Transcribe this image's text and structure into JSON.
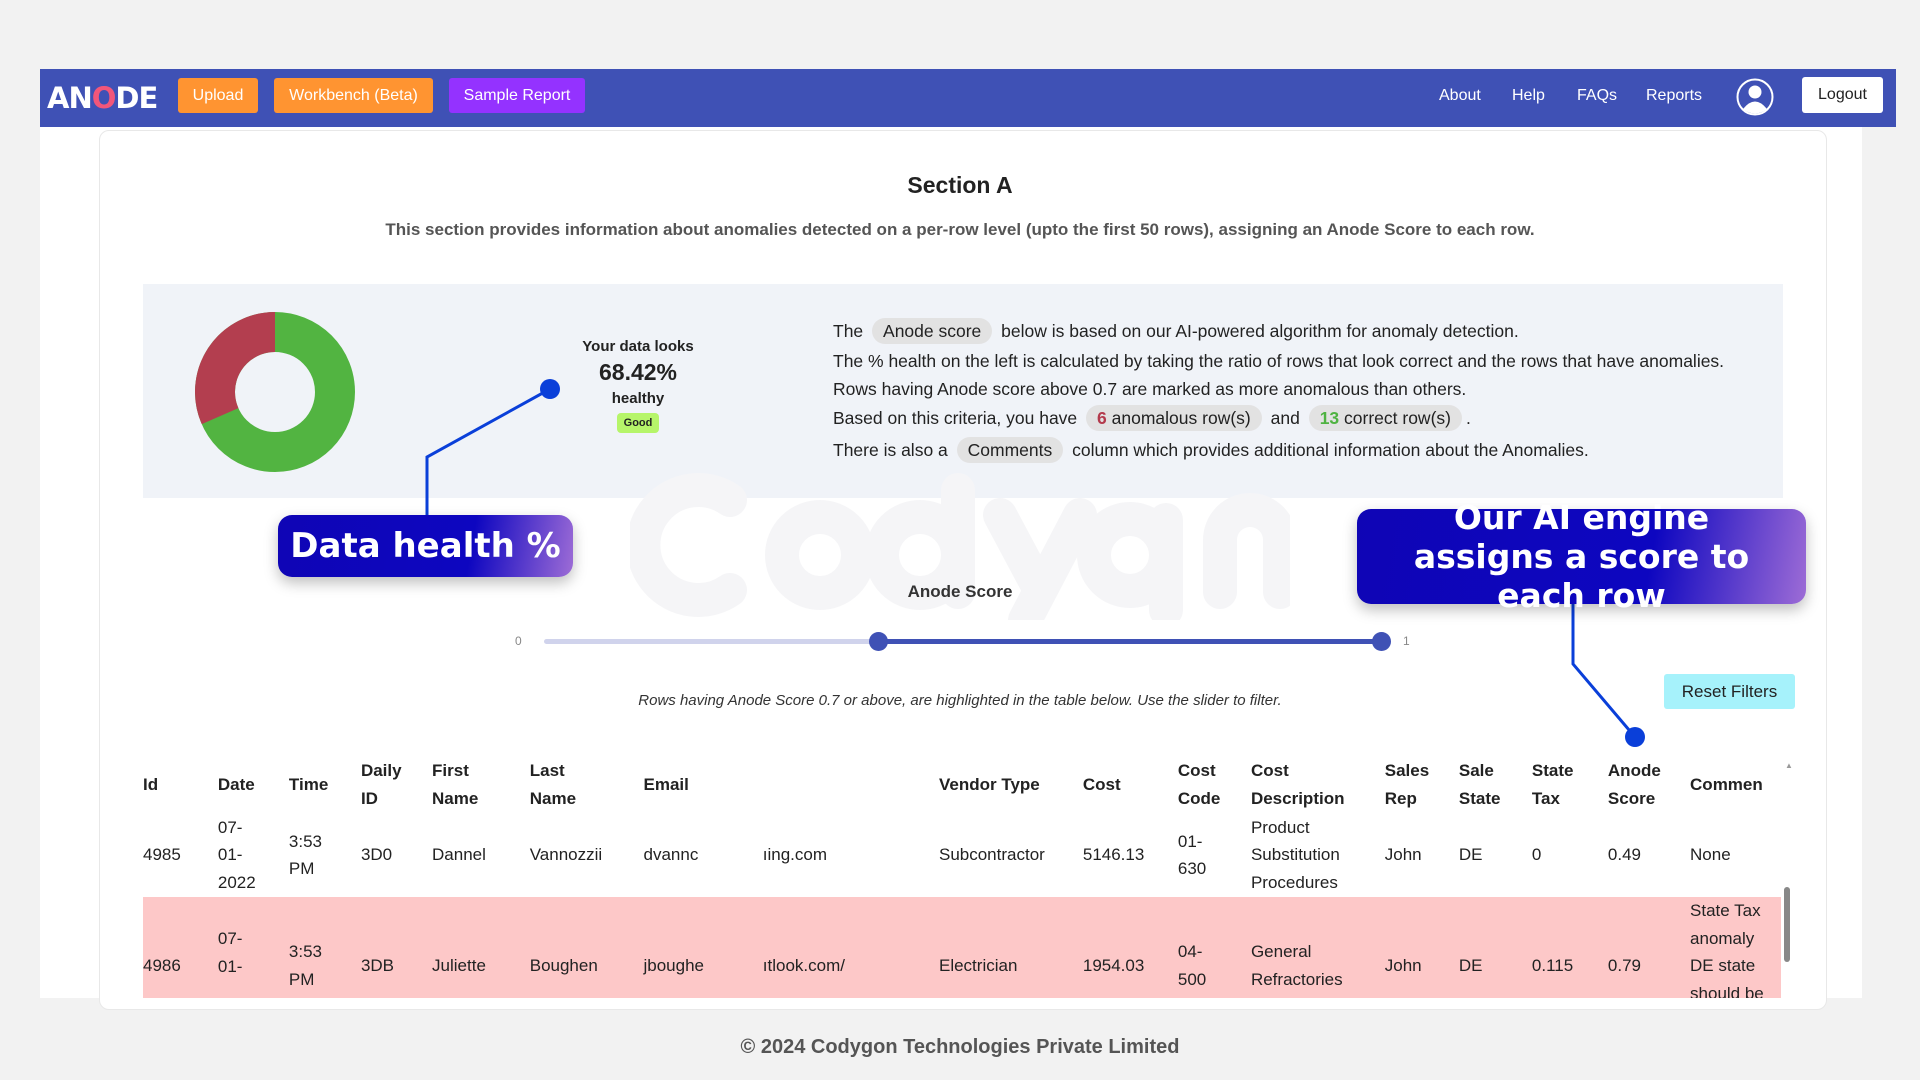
{
  "nav": {
    "logo": "ANODE",
    "logo_parts": [
      "AN",
      "O",
      "DE"
    ],
    "buttons": [
      {
        "label": "Upload",
        "color": "#ff9431"
      },
      {
        "label": "Workbench (Beta)",
        "color": "#ff9431"
      },
      {
        "label": "Sample Report",
        "color": "#9432ff"
      }
    ],
    "links": [
      "About",
      "Help",
      "FAQs",
      "Reports"
    ],
    "logout": "Logout"
  },
  "section": {
    "title": "Section A",
    "subtitle": "This section provides information about anomalies detected on a per-row level (upto the first 50 rows), assigning an Anode Score to each row."
  },
  "health": {
    "line1": "Your data looks",
    "percent": "68.42%",
    "line2": "healthy",
    "badge": "Good",
    "healthy_fraction": 0.6842,
    "colors": {
      "healthy": "#52b441",
      "anomalous": "#b33e4f"
    }
  },
  "info": {
    "l1_pre": "The",
    "l1_chip": "Anode score",
    "l1_post": "below is based on our AI-powered algorithm for anomaly detection.",
    "l2": "The % health on the left is calculated by taking the ratio of rows that look correct and the rows that have anomalies.",
    "l3": "Rows having Anode score above 0.7 are marked as more anomalous than others.",
    "l4_pre": "Based on this criteria, you have",
    "anom_count": "6",
    "anom_label": "anomalous row(s)",
    "l4_and": "and",
    "correct_count": "13",
    "correct_label": "correct row(s)",
    "l4_end": ".",
    "l5_pre": "There is also a",
    "l5_chip": "Comments",
    "l5_post": "column which provides additional information about the Anomalies."
  },
  "callouts": {
    "health": "Data health %",
    "ai": "Our AI engine assigns a score to each row"
  },
  "watermark": "Codygon",
  "slider": {
    "label": "Anode Score",
    "min_label": "0",
    "max_label": "1",
    "low": 0.4,
    "high": 1.0,
    "note": "Rows having Anode Score 0.7 or above, are highlighted in the table below. Use the slider to filter."
  },
  "reset_label": "Reset Filters",
  "table": {
    "headers": [
      [
        "Id"
      ],
      [
        "Date"
      ],
      [
        "Time"
      ],
      [
        "Daily",
        "ID"
      ],
      [
        "First",
        "Name"
      ],
      [
        "Last",
        "Name"
      ],
      [
        "Email"
      ],
      [
        ""
      ],
      [
        "Vendor Type"
      ],
      [
        "Cost"
      ],
      [
        "Cost",
        "Code"
      ],
      [
        "Cost",
        "Description"
      ],
      [
        "Sales",
        "Rep"
      ],
      [
        "Sale",
        "State"
      ],
      [
        "State",
        "Tax"
      ],
      [
        "Anode",
        "Score"
      ],
      [
        "Commen"
      ]
    ],
    "rows": [
      {
        "anomalous": false,
        "cells": [
          [
            "4985"
          ],
          [
            "07-",
            "01-",
            "2022"
          ],
          [
            "3:53",
            "PM"
          ],
          [
            "3D0"
          ],
          [
            "Dannel"
          ],
          [
            "Vannozzii"
          ],
          [
            "dvannc"
          ],
          [
            "ıing.com"
          ],
          [
            "Subcontractor"
          ],
          [
            "5146.13"
          ],
          [
            "01-",
            "630"
          ],
          [
            "Product",
            "Substitution",
            "Procedures"
          ],
          [
            "John"
          ],
          [
            "DE"
          ],
          [
            "0"
          ],
          [
            "0.49"
          ],
          [
            "None"
          ]
        ]
      },
      {
        "anomalous": true,
        "cells": [
          [
            "4986"
          ],
          [
            "07-",
            "01-",
            ""
          ],
          [
            "3:53",
            "PM"
          ],
          [
            "3DB"
          ],
          [
            "Juliette"
          ],
          [
            "Boughen"
          ],
          [
            "jboughe"
          ],
          [
            "ıtlook.com/"
          ],
          [
            "Electrician"
          ],
          [
            "1954.03"
          ],
          [
            "04-",
            "500"
          ],
          [
            "General",
            "Refractories"
          ],
          [
            "John"
          ],
          [
            "DE"
          ],
          [
            "0.115"
          ],
          [
            "0.79"
          ],
          [
            "State Tax",
            "anomaly",
            "DE state",
            "should be"
          ]
        ]
      }
    ]
  },
  "footer": "© 2024 Codygon Technologies Private Limited"
}
